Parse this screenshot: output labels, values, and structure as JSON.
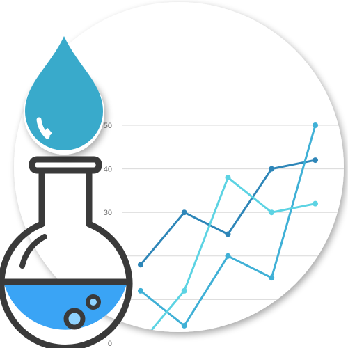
{
  "chart_data": {
    "type": "line",
    "title": "",
    "xlabel": "",
    "ylabel": "",
    "x": [
      1,
      2,
      3,
      4,
      5
    ],
    "ylim": [
      0,
      50
    ],
    "yticks": [
      0,
      10,
      20,
      30,
      40,
      50
    ],
    "ytick_labels": [
      "0",
      "",
      "",
      "30",
      "40",
      "50"
    ],
    "grid": true,
    "legend": "none",
    "series": [
      {
        "color": "#2e86b8",
        "values": [
          18,
          30,
          25,
          40,
          42
        ]
      },
      {
        "color": "#3fb0d6",
        "values": [
          12,
          4,
          20,
          15,
          50
        ]
      },
      {
        "color": "#5cd3e3",
        "values": [
          0,
          12,
          38,
          30,
          32
        ]
      }
    ]
  },
  "illustration": {
    "icon": "flask-icon",
    "drop_icon": "water-drop-icon",
    "liquid_color": "#3aa4f5",
    "outline_color": "#3a3a3a",
    "drop_color": "#39aacb"
  }
}
